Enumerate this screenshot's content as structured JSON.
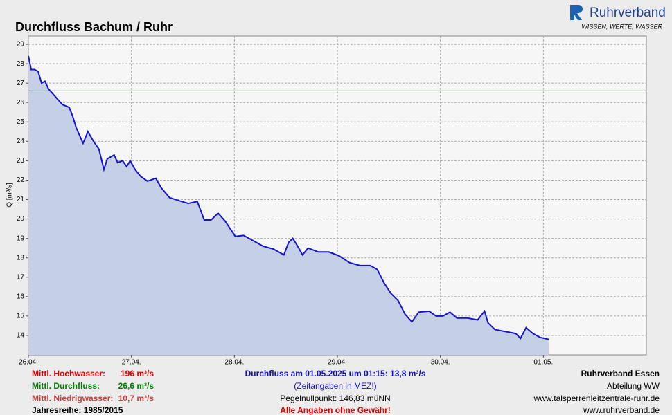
{
  "chart_data": {
    "type": "area",
    "title": "Durchfluss Bachum / Ruhr",
    "y_label": "Q [m³/s]",
    "color": "#1414d2",
    "fill_color": "#c5d0e6",
    "grid": true,
    "xlim": [
      0,
      6
    ],
    "ylim": [
      13,
      29.43
    ],
    "xticks": [
      {
        "value": 0,
        "label": "26.04."
      },
      {
        "value": 1,
        "label": "27.04."
      },
      {
        "value": 2,
        "label": "28.04."
      },
      {
        "value": 3,
        "label": "29.04."
      },
      {
        "value": 4,
        "label": "30.04."
      },
      {
        "value": 5,
        "label": "01.05."
      }
    ],
    "yticks": [
      14,
      15,
      16,
      17,
      18,
      19,
      20,
      21,
      22,
      23,
      24,
      25,
      26,
      27,
      28,
      29
    ],
    "x": [
      0,
      0.027,
      0.06,
      0.094,
      0.128,
      0.161,
      0.195,
      0.262,
      0.329,
      0.397,
      0.43,
      0.464,
      0.497,
      0.531,
      0.578,
      0.632,
      0.685,
      0.733,
      0.766,
      0.833,
      0.867,
      0.914,
      0.954,
      0.988,
      1.035,
      1.089,
      1.156,
      1.237,
      1.29,
      1.371,
      1.458,
      1.552,
      1.64,
      1.707,
      1.774,
      1.841,
      1.909,
      2.009,
      2.09,
      2.177,
      2.278,
      2.379,
      2.48,
      2.527,
      2.567,
      2.614,
      2.661,
      2.715,
      2.816,
      2.917,
      3.017,
      3.118,
      3.219,
      3.32,
      3.387,
      3.454,
      3.522,
      3.589,
      3.656,
      3.723,
      3.79,
      3.891,
      3.958,
      4.026,
      4.093,
      4.16,
      4.261,
      4.362,
      4.429,
      4.462,
      4.53,
      4.63,
      4.731,
      4.778,
      4.832,
      4.899,
      4.966,
      5.052
    ],
    "values": [
      28.4,
      27.7,
      27.7,
      27.6,
      27.0,
      27.1,
      26.7,
      26.3,
      25.9,
      25.75,
      25.3,
      24.7,
      24.3,
      23.9,
      24.5,
      24.0,
      23.6,
      22.55,
      23.1,
      23.3,
      22.9,
      23.0,
      22.7,
      23.0,
      22.55,
      22.2,
      21.95,
      22.1,
      21.6,
      21.1,
      20.95,
      20.8,
      20.9,
      19.95,
      19.95,
      20.3,
      19.9,
      19.1,
      19.15,
      18.9,
      18.6,
      18.45,
      18.15,
      18.8,
      19.0,
      18.6,
      18.15,
      18.5,
      18.3,
      18.3,
      18.1,
      17.75,
      17.6,
      17.6,
      17.4,
      16.7,
      16.15,
      15.8,
      15.1,
      14.7,
      15.2,
      15.25,
      15.0,
      15.0,
      15.2,
      14.9,
      14.9,
      14.8,
      15.25,
      14.65,
      14.3,
      14.2,
      14.1,
      13.85,
      14.4,
      14.1,
      13.9,
      13.8
    ],
    "mean_flow": {
      "value": 26.6,
      "label": "26,6 m³/s",
      "name": "Mittl. Durchfluss:",
      "color": "#008000"
    },
    "high_water": {
      "value": 196,
      "label": "196 m³/s",
      "name": "Mittl. Hochwasser:",
      "color": "#e00000"
    },
    "low_water": {
      "value": 10.7,
      "label": "10,7 m³/s",
      "name": "Mittl. Niedrigwasser:",
      "color": "#c04040"
    },
    "series_years": "Jahresreihe: 1985/2015"
  },
  "logo": {
    "name": "Ruhrverband",
    "slogan": "WISSEN, WERTE, WASSER"
  },
  "footer": {
    "current": "Durchfluss am 01.05.2025 um 01:15: 13,8 m³/s",
    "timezone": "(Zeitangaben in MEZ!)",
    "gauge_zero": "Pegelnullpunkt: 146,83 müNN",
    "disclaimer": "Alle Angaben ohne Gewähr!",
    "org": "Ruhrverband Essen",
    "department": "Abteilung WW",
    "url1": "www.talsperrenleitzentrale-ruhr.de",
    "url2": "www.ruhrverband.de"
  }
}
